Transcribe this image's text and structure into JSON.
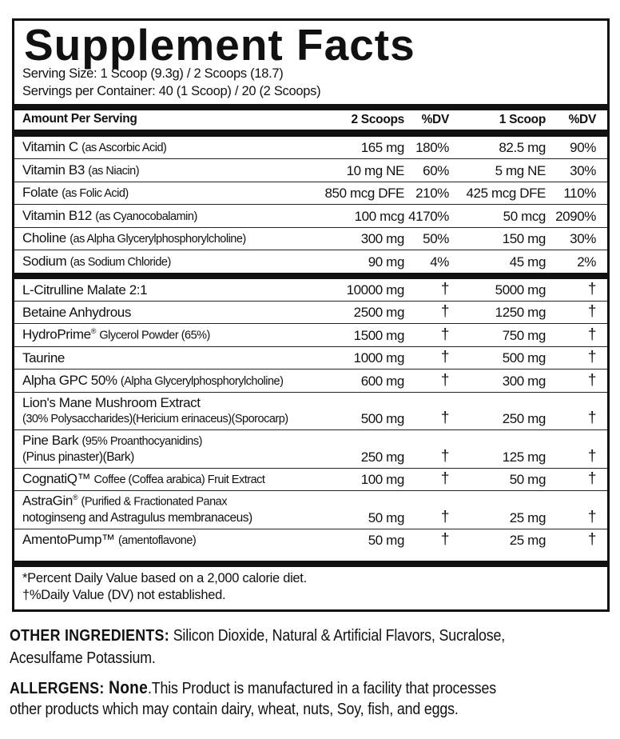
{
  "title": "Supplement Facts",
  "serving_size": "Serving Size: 1 Scoop (9.3g) / 2 Scoops (18.7)",
  "servings_per_container": "Servings per Container: 40 (1 Scoop)  / 20 (2 Scoops)",
  "header": {
    "amount": "Amount Per Serving",
    "col1": "2 Scoops",
    "col2": "%DV",
    "col3": "1 Scoop",
    "col4": "%DV"
  },
  "vitamins": [
    {
      "name": "Vitamin C",
      "sub": "(as Ascorbic Acid)",
      "v1": "165 mg",
      "d1": "180%",
      "v2": "82.5 mg",
      "d2": "90%"
    },
    {
      "name": "Vitamin B3",
      "sub": "(as Niacin)",
      "v1": "10 mg NE",
      "d1": "60%",
      "v2": "5 mg NE",
      "d2": "30%"
    },
    {
      "name": "Folate",
      "sub": "(as Folic Acid)",
      "v1": "850 mcg DFE",
      "d1": "210%",
      "v2": "425 mcg DFE",
      "d2": "110%"
    },
    {
      "name": "Vitamin B12",
      "sub": "(as Cyanocobalamin)",
      "v1": "100 mcg",
      "d1": "4170%",
      "v2": "50 mcg",
      "d2": "2090%"
    },
    {
      "name": "Choline",
      "sub": "(as Alpha Glycerylphosphorylcholine)",
      "v1": "300 mg",
      "d1": "50%",
      "v2": "150 mg",
      "d2": "30%"
    },
    {
      "name": "Sodium",
      "sub": "(as Sodium Chloride)",
      "v1": "90 mg",
      "d1": "4%",
      "v2": "45 mg",
      "d2": "2%"
    }
  ],
  "ingredients": [
    {
      "name": "L-Citrulline Malate 2:1",
      "v1": "10000 mg",
      "d1": "†",
      "v2": "5000 mg",
      "d2": "†"
    },
    {
      "name": "Betaine Anhydrous",
      "v1": "2500 mg",
      "d1": "†",
      "v2": "1250 mg",
      "d2": "†"
    },
    {
      "name": "HydroPrime",
      "mark": "®",
      "sub": "Glycerol Powder (65%)",
      "v1": "1500 mg",
      "d1": "†",
      "v2": "750 mg",
      "d2": "†"
    },
    {
      "name": "Taurine",
      "v1": "1000 mg",
      "d1": "†",
      "v2": "500 mg",
      "d2": "†"
    },
    {
      "name": "Alpha GPC 50%",
      "sub": "(Alpha Glycerylphosphorylcholine)",
      "v1": "600 mg",
      "d1": "†",
      "v2": "300 mg",
      "d2": "†"
    },
    {
      "name": "Lion's Mane Mushroom Extract",
      "line2": "(30% Polysaccharides)(Hericium erinaceus)(Sporocarp)",
      "v1": "500 mg",
      "d1": "†",
      "v2": "250 mg",
      "d2": "†"
    },
    {
      "name": "Pine Bark",
      "sub": "(95% Proanthocyanidins)",
      "line2": "(Pinus pinaster)(Bark)",
      "v1": "250 mg",
      "d1": "†",
      "v2": "125 mg",
      "d2": "†"
    },
    {
      "name": "CognatiQ™",
      "sub": "Coffee (Coffea arabica) Fruit Extract",
      "v1": "100 mg",
      "d1": "†",
      "v2": "50 mg",
      "d2": "†"
    },
    {
      "name": "AstraGin",
      "mark": "®",
      "sub": "(Purified & Fractionated Panax",
      "line2": "notoginseng and Astragulus membranaceus)",
      "v1": "50 mg",
      "d1": "†",
      "v2": "25 mg",
      "d2": "†"
    },
    {
      "name": "AmentoPump™",
      "sub": "(amentoflavone)",
      "v1": "50 mg",
      "d1": "†",
      "v2": "25 mg",
      "d2": "†"
    }
  ],
  "footnotes": [
    "*Percent Daily Value based on a 2,000 calorie diet.",
    "†%Daily Value (DV) not established."
  ],
  "other_ingredients": {
    "label": "OTHER INGREDIENTS:",
    "line1": " Silicon Dioxide, Natural & Artificial Flavors, Sucralose,",
    "line2": "Acesulfame Potassium."
  },
  "allergens": {
    "label": "ALLERGENS:",
    "value": " None",
    "line1": ".This Product is manufactured in a facility that processes",
    "line2": "other products which may contain dairy, wheat, nuts, Soy, fish, and eggs."
  }
}
